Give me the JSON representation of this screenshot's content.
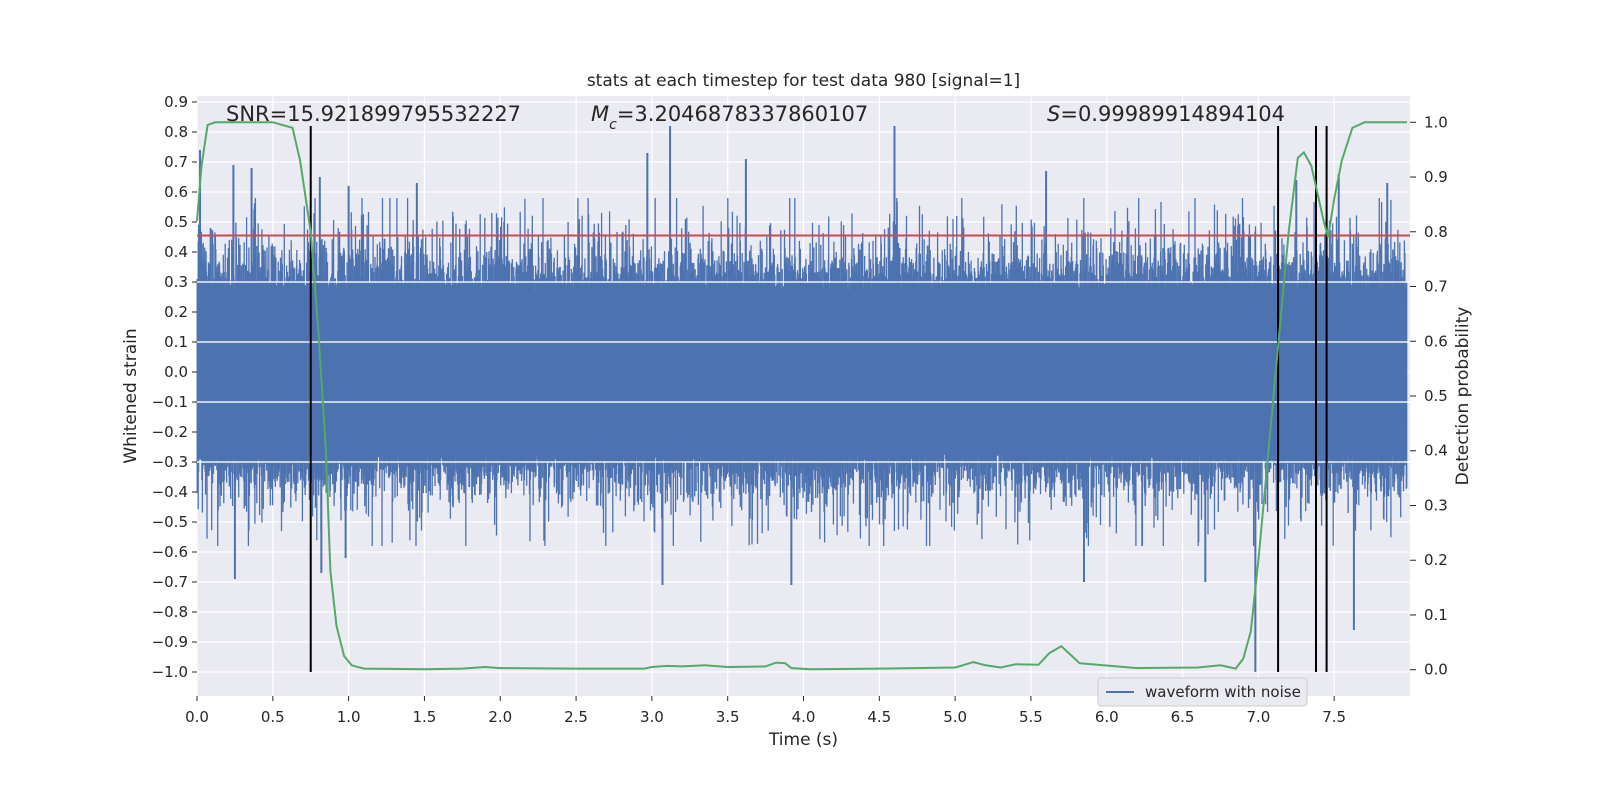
{
  "chart_data": {
    "type": "line",
    "title": "stats at each timestep for test data 980 [signal=1]",
    "xlabel": "Time (s)",
    "ylabel": "Whitened strain",
    "y2label": "Detection probability",
    "xlim": [
      0.0,
      8.0
    ],
    "ylim": [
      -1.08,
      0.92
    ],
    "y2lim": [
      -0.048,
      1.048
    ],
    "x_ticks": [
      0.0,
      0.5,
      1.0,
      1.5,
      2.0,
      2.5,
      3.0,
      3.5,
      4.0,
      4.5,
      5.0,
      5.5,
      6.0,
      6.5,
      7.0,
      7.5
    ],
    "x_tick_labels": [
      "0.0",
      "0.5",
      "1.0",
      "1.5",
      "2.0",
      "2.5",
      "3.0",
      "3.5",
      "4.0",
      "4.5",
      "5.0",
      "5.5",
      "6.0",
      "6.5",
      "7.0",
      "7.5"
    ],
    "y_ticks": [
      -1.0,
      -0.9,
      -0.8,
      -0.7,
      -0.6,
      -0.5,
      -0.4,
      -0.3,
      -0.2,
      -0.1,
      0.0,
      0.1,
      0.2,
      0.3,
      0.4,
      0.5,
      0.6,
      0.7,
      0.8,
      0.9
    ],
    "y_tick_labels": [
      "−1.0",
      "−0.9",
      "−0.8",
      "−0.7",
      "−0.6",
      "−0.5",
      "−0.4",
      "−0.3",
      "−0.2",
      "−0.1",
      "0.0",
      "0.1",
      "0.2",
      "0.3",
      "0.4",
      "0.5",
      "0.6",
      "0.7",
      "0.8",
      "0.9"
    ],
    "y2_ticks": [
      0.0,
      0.1,
      0.2,
      0.3,
      0.4,
      0.5,
      0.6,
      0.7,
      0.8,
      0.9,
      1.0
    ],
    "y2_tick_labels": [
      "0.0",
      "0.1",
      "0.2",
      "0.3",
      "0.4",
      "0.5",
      "0.6",
      "0.7",
      "0.8",
      "0.9",
      "1.0"
    ],
    "grid": true,
    "legend_position": "bottom-right",
    "annotations": {
      "snr": "SNR=15.921899795532227",
      "mc": "=3.2046878337860107",
      "s": "=0.99989914894104"
    },
    "series": [
      {
        "name": "waveform with noise",
        "color": "#4c72b0",
        "axis": "left",
        "kind": "noise_band",
        "core_envelope": [
          -0.27,
          0.27
        ],
        "typical_peak": 0.45,
        "notable_peaks": [
          {
            "x": 0.02,
            "y": 0.74
          },
          {
            "x": 0.24,
            "y": 0.69
          },
          {
            "x": 0.36,
            "y": 0.68
          },
          {
            "x": 0.81,
            "y": 0.65
          },
          {
            "x": 1.0,
            "y": 0.62
          },
          {
            "x": 1.45,
            "y": 0.63
          },
          {
            "x": 2.97,
            "y": 0.73
          },
          {
            "x": 3.12,
            "y": 0.82
          },
          {
            "x": 3.62,
            "y": 0.71
          },
          {
            "x": 4.6,
            "y": 0.82
          },
          {
            "x": 5.6,
            "y": 0.67
          },
          {
            "x": 7.25,
            "y": 0.64
          },
          {
            "x": 7.53,
            "y": 0.66
          },
          {
            "x": 7.85,
            "y": 0.63
          }
        ],
        "notable_troughs": [
          {
            "x": 0.25,
            "y": -0.69
          },
          {
            "x": 0.82,
            "y": -0.67
          },
          {
            "x": 0.98,
            "y": -0.62
          },
          {
            "x": 3.07,
            "y": -0.71
          },
          {
            "x": 3.92,
            "y": -0.71
          },
          {
            "x": 5.85,
            "y": -0.7
          },
          {
            "x": 6.65,
            "y": -0.7
          },
          {
            "x": 6.98,
            "y": -1.0
          },
          {
            "x": 7.63,
            "y": -0.86
          }
        ]
      },
      {
        "name": "",
        "color": "#55a868",
        "axis": "right",
        "x": [
          0.0,
          0.03,
          0.07,
          0.12,
          0.2,
          0.3,
          0.5,
          0.63,
          0.68,
          0.75,
          0.8,
          0.85,
          0.88,
          0.92,
          0.97,
          1.02,
          1.1,
          1.5,
          1.75,
          1.9,
          2.0,
          2.5,
          2.95,
          3.0,
          3.1,
          3.2,
          3.35,
          3.5,
          3.75,
          3.82,
          3.88,
          3.92,
          4.05,
          4.5,
          5.0,
          5.05,
          5.12,
          5.2,
          5.3,
          5.4,
          5.55,
          5.62,
          5.7,
          5.77,
          5.82,
          5.9,
          6.2,
          6.6,
          6.75,
          6.85,
          6.9,
          6.95,
          7.0,
          7.05,
          7.1,
          7.15,
          7.2,
          7.26,
          7.3,
          7.35,
          7.39,
          7.43,
          7.46,
          7.5,
          7.55,
          7.62,
          7.7,
          7.85,
          7.98
        ],
        "values": [
          0.82,
          0.92,
          0.995,
          1.0,
          1.0,
          1.0,
          1.0,
          0.99,
          0.93,
          0.8,
          0.62,
          0.4,
          0.18,
          0.08,
          0.025,
          0.008,
          0.002,
          0.001,
          0.002,
          0.005,
          0.003,
          0.002,
          0.002,
          0.005,
          0.007,
          0.006,
          0.008,
          0.005,
          0.006,
          0.013,
          0.012,
          0.003,
          0.001,
          0.002,
          0.004,
          0.008,
          0.014,
          0.008,
          0.004,
          0.01,
          0.009,
          0.03,
          0.043,
          0.025,
          0.012,
          0.01,
          0.003,
          0.004,
          0.008,
          0.002,
          0.02,
          0.07,
          0.2,
          0.35,
          0.5,
          0.65,
          0.8,
          0.935,
          0.945,
          0.92,
          0.87,
          0.82,
          0.79,
          0.86,
          0.93,
          0.99,
          1.0,
          1.0,
          1.0
        ]
      },
      {
        "name": "",
        "color": "#c44e52",
        "axis": "left",
        "kind": "hline",
        "y": 0.455
      }
    ],
    "vlines": {
      "color": "#000000",
      "x": [
        0.75,
        7.13,
        7.38,
        7.45
      ],
      "range": [
        -1.0,
        0.82
      ]
    }
  }
}
